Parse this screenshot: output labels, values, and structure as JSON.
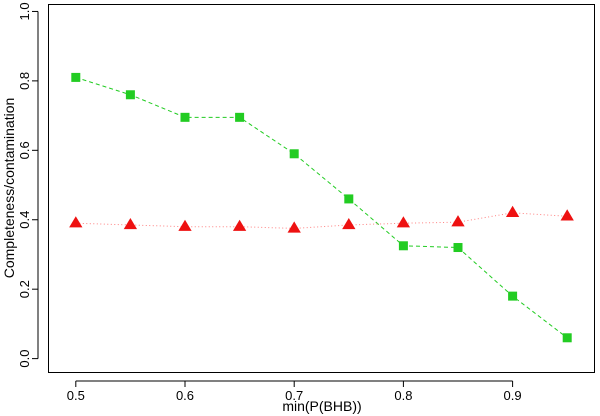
{
  "chart_data": {
    "type": "line",
    "title": "",
    "xlabel": "min(P(BHB))",
    "ylabel": "Completeness/contamination",
    "xlim": [
      0.475,
      0.975
    ],
    "ylim": [
      -0.04,
      1.02
    ],
    "xticks": [
      0.5,
      0.6,
      0.7,
      0.8,
      0.9
    ],
    "xtick_labels": [
      "0.5",
      "0.6",
      "0.7",
      "0.8",
      "0.9"
    ],
    "yticks": [
      0.0,
      0.2,
      0.4,
      0.6,
      0.8,
      1.0
    ],
    "ytick_labels": [
      "0.0",
      "0.2",
      "0.4",
      "0.6",
      "0.8",
      "1.0"
    ],
    "grid": false,
    "legend": "none",
    "x": [
      0.5,
      0.55,
      0.6,
      0.65,
      0.7,
      0.75,
      0.8,
      0.85,
      0.9,
      0.95
    ],
    "series": [
      {
        "marker": "square",
        "line_style": "dashed",
        "color": "#22cc22",
        "values": [
          0.81,
          0.76,
          0.695,
          0.695,
          0.59,
          0.46,
          0.325,
          0.32,
          0.18,
          0.06
        ]
      },
      {
        "marker": "triangle",
        "line_style": "dotted",
        "color": "#ee1111",
        "line_color": "#ff8080",
        "values": [
          0.39,
          0.385,
          0.38,
          0.38,
          0.375,
          0.385,
          0.39,
          0.393,
          0.42,
          0.41
        ]
      }
    ]
  }
}
